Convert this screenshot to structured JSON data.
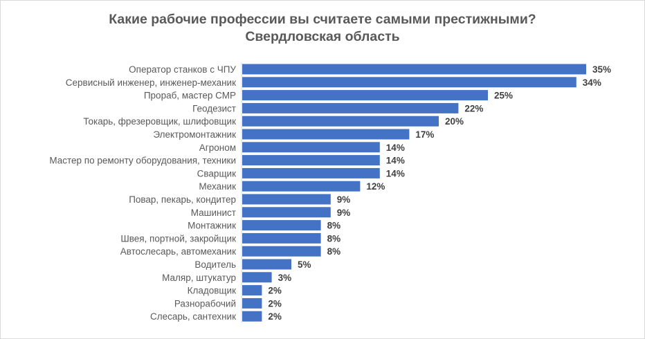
{
  "chart_data": {
    "type": "bar",
    "orientation": "horizontal",
    "title": "Какие рабочие профессии вы считаете самыми престижными?",
    "subtitle": "Свердловская область",
    "categories": [
      "Оператор  станков с ЧПУ",
      "Сервисный инженер, инженер-механик",
      "Прораб, мастер СМР",
      "Геодезист",
      "Токарь, фрезеровщик, шлифовщик",
      "Электромонтажник",
      "Агроном",
      "Мастер по ремонту оборудования, техники",
      "Сварщик",
      "Механик",
      "Повар, пекарь, кондитер",
      "Машинист",
      "Монтажник",
      "Швея, портной, закройщик",
      "Автослесарь, автомеханик",
      "Водитель",
      "Маляр, штукатур",
      "Кладовщик",
      "Разнорабочий",
      "Слесарь, сантехник"
    ],
    "values": [
      35,
      34,
      25,
      22,
      20,
      17,
      14,
      14,
      14,
      12,
      9,
      9,
      8,
      8,
      8,
      5,
      3,
      2,
      2,
      2
    ],
    "value_labels": [
      "35%",
      "34%",
      "25%",
      "22%",
      "20%",
      "17%",
      "14%",
      "14%",
      "14%",
      "12%",
      "9%",
      "9%",
      "8%",
      "8%",
      "8%",
      "5%",
      "3%",
      "2%",
      "2%",
      "2%"
    ],
    "unit": "%",
    "xlim": [
      0,
      35
    ],
    "grid": false,
    "colors": {
      "bar": "#4472c4",
      "axis": "#d9d9d9"
    }
  }
}
